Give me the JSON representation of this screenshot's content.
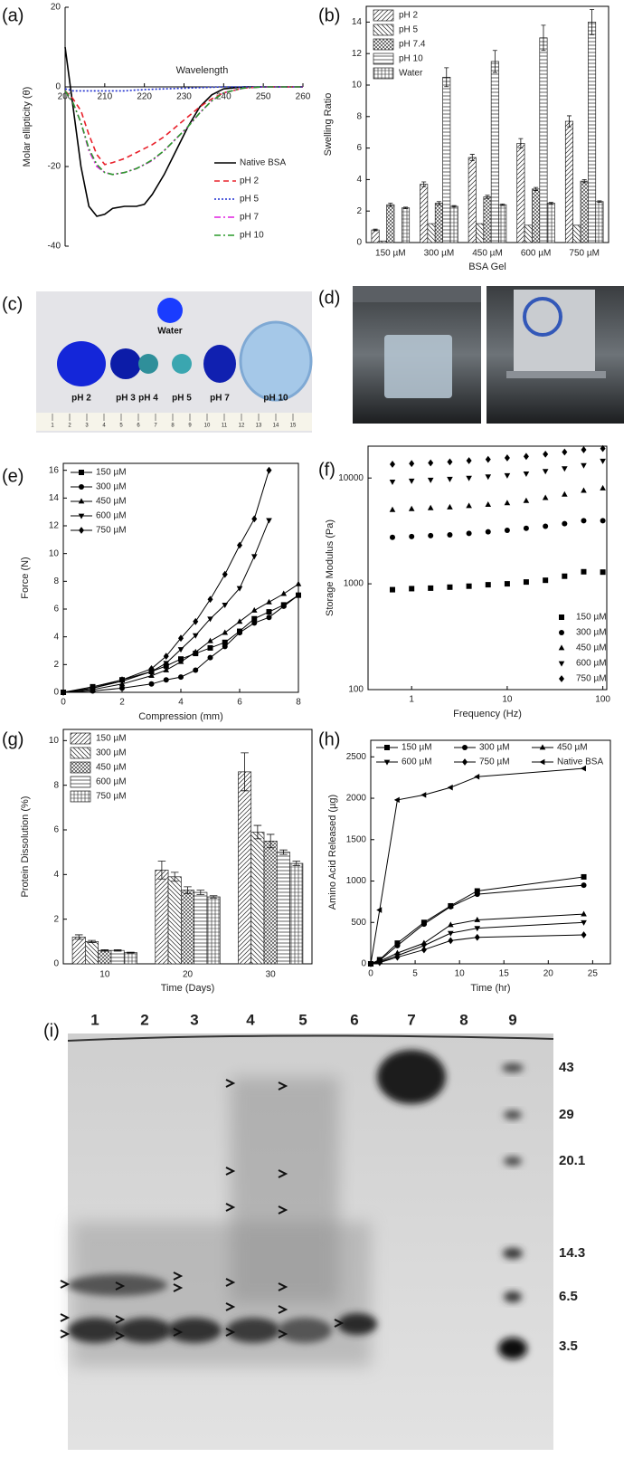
{
  "chart_data": [
    {
      "type": "line",
      "label": "(a)",
      "xlabel": "Wavelength",
      "ylabel": "Molar ellipticity (θ)",
      "spines": "zero",
      "x": [
        200,
        202,
        204,
        206,
        208,
        210,
        212,
        215,
        218,
        220,
        222,
        225,
        228,
        231,
        234,
        237,
        240,
        245,
        250,
        255,
        260
      ],
      "xlim": [
        200,
        260
      ],
      "xticks": [
        200,
        210,
        220,
        230,
        240,
        250,
        260
      ],
      "ylim": [
        -40,
        20
      ],
      "yticks": [
        -40,
        -20,
        0,
        20
      ],
      "legend": "lower right",
      "series": [
        {
          "name": "Native BSA",
          "color": "#000000",
          "dash": "solid",
          "values": [
            10,
            -5,
            -20,
            -30,
            -32.5,
            -32,
            -30.5,
            -30,
            -30,
            -29.5,
            -27,
            -22,
            -16,
            -10,
            -5,
            -2,
            -0.5,
            0,
            0,
            0,
            0
          ]
        },
        {
          "name": "pH 2",
          "color": "#e8202a",
          "dash": "dashed",
          "values": [
            -1,
            -3,
            -6,
            -12,
            -17,
            -19.5,
            -19,
            -18,
            -16.5,
            -15.5,
            -14.5,
            -12.5,
            -10,
            -7.5,
            -5,
            -3,
            -1.5,
            -0.3,
            0,
            0,
            0
          ]
        },
        {
          "name": "pH 5",
          "color": "#1f2fd0",
          "dash": "dotted",
          "values": [
            -0.5,
            -1,
            -1,
            -1,
            -1,
            -1,
            -1,
            -1,
            -0.8,
            -0.7,
            -0.6,
            -0.5,
            -0.4,
            -0.3,
            -0.2,
            -0.1,
            0,
            0,
            0,
            0,
            0
          ]
        },
        {
          "name": "pH 7",
          "color": "#e020e0",
          "dash": "dashdot",
          "values": [
            -1,
            -4,
            -9,
            -16,
            -20,
            -21.5,
            -22,
            -21.5,
            -20.5,
            -19.5,
            -18.5,
            -16,
            -13,
            -10,
            -6.5,
            -3.5,
            -1.5,
            -0.3,
            0,
            0,
            0
          ]
        },
        {
          "name": "pH 10",
          "color": "#2a9a2a",
          "dash": "dashdot",
          "values": [
            -1,
            -4,
            -9,
            -15.5,
            -19.5,
            -21.5,
            -22,
            -21.5,
            -20.5,
            -19.5,
            -18.3,
            -16,
            -13,
            -10,
            -6.5,
            -3.5,
            -1.5,
            -0.3,
            0,
            0,
            0
          ]
        }
      ]
    },
    {
      "type": "bar",
      "label": "(b)",
      "xlabel": "BSA Gel",
      "ylabel": "Swelling Ratio",
      "spines": "box",
      "categories": [
        "150 µM",
        "300 µM",
        "450 µM",
        "600 µM",
        "750 µM"
      ],
      "ylim": [
        0,
        15
      ],
      "yticks": [
        0,
        2,
        4,
        6,
        8,
        10,
        12,
        14
      ],
      "legend": "upper left",
      "series": [
        {
          "name": "pH 2",
          "hatch": "diagonal",
          "values": [
            0.8,
            3.7,
            5.4,
            6.3,
            7.7
          ],
          "errors": [
            0.05,
            0.15,
            0.2,
            0.3,
            0.35
          ]
        },
        {
          "name": "pH 5",
          "hatch": "backdiagonal",
          "values": [
            0.1,
            1.2,
            1.2,
            1.1,
            1.1
          ]
        },
        {
          "name": "pH 7.4",
          "hatch": "cross",
          "values": [
            2.4,
            2.5,
            2.9,
            3.4,
            3.9
          ],
          "errors": [
            0.1,
            0.1,
            0.1,
            0.1,
            0.1
          ]
        },
        {
          "name": "pH 10",
          "hatch": "horizontal",
          "values": [
            null,
            10.5,
            11.5,
            13,
            14
          ],
          "errors": [
            null,
            0.6,
            0.7,
            0.8,
            0.8
          ]
        },
        {
          "name": "Water",
          "hatch": "grid",
          "values": [
            2.2,
            2.3,
            2.4,
            2.5,
            2.6
          ],
          "errors": [
            0.05,
            0.05,
            0.05,
            0.05,
            0.05
          ]
        }
      ]
    },
    {
      "type": "line",
      "label": "(e)",
      "xlabel": "Compression (mm)",
      "ylabel": "Force (N)",
      "spines": "box",
      "x": [
        0,
        1,
        2,
        3,
        3.5,
        4,
        4.5,
        5,
        5.5,
        6,
        6.5,
        7,
        7.5,
        8
      ],
      "xlim": [
        0,
        8
      ],
      "xticks": [
        0,
        2,
        4,
        6,
        8
      ],
      "ylim": [
        0,
        16.5
      ],
      "yticks": [
        0,
        2,
        4,
        6,
        8,
        10,
        12,
        14,
        16
      ],
      "legend": "upper left",
      "series": [
        {
          "name": "150 µM",
          "color": "#000000",
          "marker": "square",
          "values": [
            0,
            0.4,
            0.9,
            1.5,
            1.9,
            2.4,
            2.8,
            3.2,
            3.6,
            4.4,
            5.3,
            5.8,
            6.3,
            7.0
          ]
        },
        {
          "name": "300 µM",
          "color": "#000000",
          "marker": "circle",
          "values": [
            0,
            0.1,
            0.3,
            0.6,
            0.9,
            1.1,
            1.6,
            2.5,
            3.3,
            4.3,
            5.0,
            5.4,
            6.2,
            7.0
          ]
        },
        {
          "name": "450 µM",
          "color": "#000000",
          "marker": "triangle-up",
          "values": [
            0,
            0.2,
            0.6,
            1.2,
            1.6,
            2.2,
            2.9,
            3.7,
            4.3,
            5.1,
            5.9,
            6.5,
            7.1,
            7.8
          ]
        },
        {
          "name": "600 µM",
          "color": "#000000",
          "marker": "triangle-down",
          "values": [
            0,
            0.3,
            0.8,
            1.5,
            2.1,
            3.1,
            4.1,
            5.3,
            6.3,
            7.5,
            9.8,
            12.4,
            null,
            null
          ]
        },
        {
          "name": "750 µM",
          "color": "#000000",
          "marker": "diamond",
          "values": [
            0,
            0.3,
            0.9,
            1.7,
            2.6,
            3.9,
            5.1,
            6.7,
            8.5,
            10.6,
            12.5,
            16.0,
            null,
            null
          ]
        }
      ]
    },
    {
      "type": "scatter",
      "label": "(f)",
      "xlabel": "Frequency (Hz)",
      "ylabel": "Storage Modulus (Pa)",
      "spines": "box",
      "xscale": "log",
      "yscale": "log",
      "x": [
        0.63,
        1,
        1.58,
        2.51,
        3.98,
        6.31,
        10,
        15.8,
        25.1,
        39.8,
        63.1,
        100
      ],
      "xlim": [
        0.35,
        110
      ],
      "xticks": [
        1,
        10,
        100
      ],
      "ylim": [
        100,
        20000
      ],
      "yticks": [
        100,
        1000,
        10000
      ],
      "legend": "lower right",
      "series": [
        {
          "name": "150 µM",
          "color": "#000000",
          "marker": "square",
          "values": [
            880,
            900,
            910,
            930,
            950,
            980,
            1000,
            1040,
            1080,
            1180,
            1300,
            1290
          ]
        },
        {
          "name": "300 µM",
          "color": "#000000",
          "marker": "circle",
          "values": [
            2750,
            2800,
            2850,
            2900,
            3000,
            3100,
            3200,
            3350,
            3500,
            3700,
            3950,
            3950
          ]
        },
        {
          "name": "450 µM",
          "color": "#000000",
          "marker": "triangle-up",
          "values": [
            5000,
            5100,
            5200,
            5300,
            5450,
            5600,
            5800,
            6100,
            6500,
            7000,
            7600,
            8000
          ]
        },
        {
          "name": "600 µM",
          "color": "#000000",
          "marker": "triangle-down",
          "values": [
            9200,
            9400,
            9600,
            9800,
            10000,
            10300,
            10600,
            11000,
            11600,
            12300,
            13200,
            14500
          ]
        },
        {
          "name": "750 µM",
          "color": "#000000",
          "marker": "diamond",
          "values": [
            13500,
            13700,
            13900,
            14200,
            14600,
            15000,
            15500,
            16000,
            16800,
            17600,
            18500,
            19000
          ]
        }
      ]
    },
    {
      "type": "bar",
      "label": "(g)",
      "xlabel": "Time (Days)",
      "ylabel": "Protein Dissolution (%)",
      "spines": "box",
      "categories": [
        "10",
        "20",
        "30"
      ],
      "ylim": [
        0,
        10.5
      ],
      "yticks": [
        0,
        2,
        4,
        6,
        8,
        10
      ],
      "legend": "upper left",
      "series": [
        {
          "name": "150 µM",
          "hatch": "diagonal",
          "values": [
            1.2,
            4.2,
            8.6
          ],
          "errors": [
            0.1,
            0.4,
            0.85
          ]
        },
        {
          "name": "300 µM",
          "hatch": "backdiagonal",
          "values": [
            1.0,
            3.9,
            5.9
          ],
          "errors": [
            0.05,
            0.2,
            0.3
          ]
        },
        {
          "name": "450 µM",
          "hatch": "cross",
          "values": [
            0.6,
            3.3,
            5.5
          ],
          "errors": [
            0.03,
            0.15,
            0.3
          ]
        },
        {
          "name": "600 µM",
          "hatch": "horizontal",
          "values": [
            0.6,
            3.2,
            5.0
          ],
          "errors": [
            0.03,
            0.1,
            0.1
          ]
        },
        {
          "name": "750 µM",
          "hatch": "grid",
          "values": [
            0.5,
            3.0,
            4.5
          ],
          "errors": [
            0.02,
            0.05,
            0.1
          ]
        }
      ]
    },
    {
      "type": "line",
      "label": "(h)",
      "xlabel": "Time (hr)",
      "ylabel": "Amino Acid Released (µg)",
      "spines": "box",
      "x": [
        0,
        1,
        3,
        6,
        9,
        12,
        24
      ],
      "xlim": [
        0,
        27
      ],
      "xticks": [
        0,
        5,
        10,
        15,
        20,
        25
      ],
      "ylim": [
        0,
        2700
      ],
      "yticks": [
        0,
        500,
        1000,
        1500,
        2000,
        2500
      ],
      "legend": "top",
      "series": [
        {
          "name": "150 µM",
          "color": "#000000",
          "marker": "square",
          "values": [
            0,
            50,
            250,
            500,
            700,
            880,
            1050
          ]
        },
        {
          "name": "300 µM",
          "color": "#000000",
          "marker": "circle",
          "values": [
            0,
            40,
            220,
            480,
            690,
            840,
            950
          ]
        },
        {
          "name": "450 µM",
          "color": "#000000",
          "marker": "triangle-up",
          "values": [
            0,
            30,
            130,
            250,
            470,
            530,
            600
          ]
        },
        {
          "name": "600 µM",
          "color": "#000000",
          "marker": "triangle-down",
          "values": [
            0,
            20,
            100,
            220,
            370,
            430,
            500
          ]
        },
        {
          "name": "750 µM",
          "color": "#000000",
          "marker": "diamond",
          "values": [
            0,
            15,
            80,
            170,
            280,
            320,
            350
          ]
        },
        {
          "name": "Native BSA",
          "color": "#000000",
          "marker": "triangle-left",
          "values": [
            0,
            650,
            1980,
            2040,
            2130,
            2260,
            2360
          ]
        }
      ]
    }
  ],
  "panel_c": {
    "label": "(c)",
    "samples": [
      "Water",
      "pH 2",
      "pH 3",
      "pH 4",
      "pH 5",
      "pH 7",
      "pH 10"
    ],
    "ruler": [
      "1",
      "2",
      "3",
      "4",
      "5",
      "6",
      "7",
      "8",
      "9",
      "10",
      "11",
      "12",
      "13",
      "14",
      "15"
    ]
  },
  "panel_d": {
    "label": "(d)"
  },
  "panel_i": {
    "label": "(i)",
    "lanes": [
      "1",
      "2",
      "3",
      "4",
      "5",
      "6",
      "7",
      "8",
      "9"
    ],
    "markers": [
      "43",
      "29",
      "20.1",
      "14.3",
      "6.5",
      "3.5"
    ]
  }
}
